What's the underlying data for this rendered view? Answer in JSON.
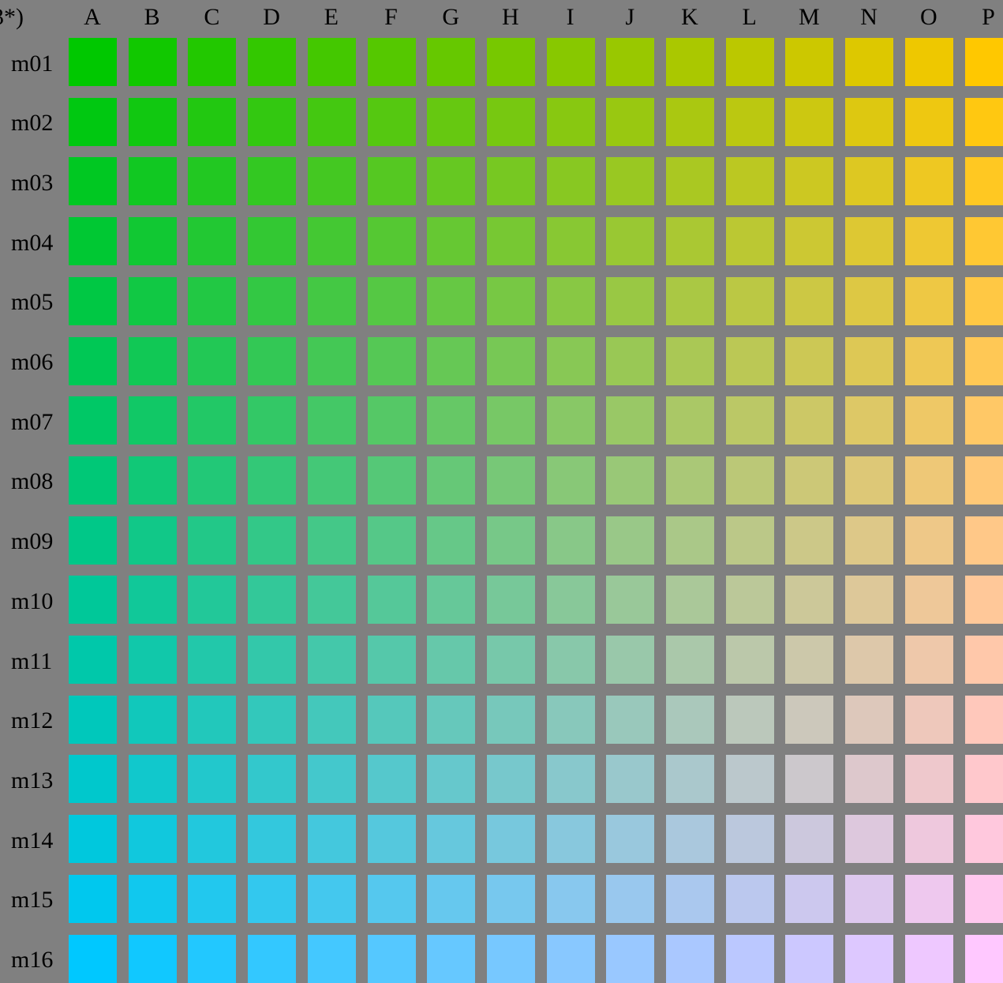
{
  "corner_label": "3*)",
  "columns": [
    "A",
    "B",
    "C",
    "D",
    "E",
    "F",
    "G",
    "H",
    "I",
    "J",
    "K",
    "L",
    "M",
    "N",
    "O",
    "P"
  ],
  "rows": [
    "m01",
    "m02",
    "m03",
    "m04",
    "m05",
    "m06",
    "m07",
    "m08",
    "m09",
    "m10",
    "m11",
    "m12",
    "m13",
    "m14",
    "m15",
    "m16"
  ],
  "corner_colors": {
    "top_left": "#00c800",
    "top_right": "#ffc800",
    "bottom_left": "#00c8ff",
    "bottom_right": "#ffc8ff"
  }
}
